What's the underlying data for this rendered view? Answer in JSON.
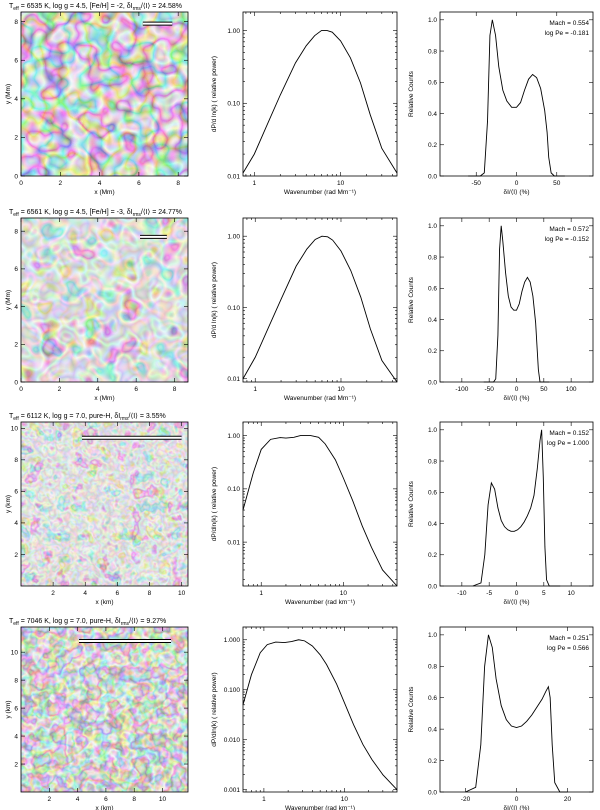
{
  "chart_data": [
    {
      "type": "heatmap",
      "title_main": "T",
      "title_sub": "eff",
      "title_rest": " = 6535 K, log g = 4.5, [Fe/H] = -2, δI",
      "title_sub2": "rms",
      "title_end": "/⟨I⟩ = 24.58%",
      "xlabel": "x (Mm)",
      "ylabel": "y (Mm)",
      "xlim": [
        0,
        8.5
      ],
      "ylim": [
        0,
        8.5
      ],
      "xticks": [
        0,
        2,
        4,
        6,
        8
      ],
      "yticks": [
        0,
        2,
        4,
        6,
        8
      ],
      "scale_bar": [
        6.2,
        7.7,
        7.9
      ]
    },
    {
      "type": "line",
      "log_x": true,
      "log_y": true,
      "xlabel": "Wavenumber (rad Mm⁻¹)",
      "ylabel": "dP/d ln(k) ( relative power)",
      "xlim": [
        0.74,
        45
      ],
      "ylim": [
        0.01,
        1.8
      ],
      "xticks": [
        1,
        10
      ],
      "xtick_labels": [
        "1",
        "10"
      ],
      "yticks": [
        0.01,
        0.1,
        1
      ],
      "ytick_labels": [
        "0.01",
        "0.10",
        "1.00"
      ],
      "x": [
        0.74,
        1,
        1.5,
        2,
        3,
        4,
        5,
        6,
        7,
        8,
        10,
        13,
        17,
        22,
        30,
        45
      ],
      "y": [
        0.011,
        0.02,
        0.06,
        0.13,
        0.36,
        0.62,
        0.85,
        1.0,
        1.0,
        0.95,
        0.72,
        0.42,
        0.19,
        0.07,
        0.024,
        0.011
      ]
    },
    {
      "type": "line",
      "xlabel": "δI/⟨I⟩ (%)",
      "ylabel": "Relative Counts",
      "xlim": [
        -95,
        95
      ],
      "ylim": [
        0,
        1.05
      ],
      "xticks": [
        -50,
        0,
        50
      ],
      "yticks": [
        0,
        0.2,
        0.4,
        0.6,
        0.8,
        1.0
      ],
      "ytick_labels": [
        "0.0",
        "0.2",
        "0.4",
        "0.6",
        "0.8",
        "1.0"
      ],
      "x": [
        -60,
        -45,
        -40,
        -36,
        -33,
        -30,
        -26,
        -22,
        -17,
        -12,
        -6,
        0,
        5,
        10,
        15,
        20,
        25,
        30,
        35,
        38,
        40,
        43,
        47,
        52,
        60
      ],
      "y": [
        0,
        0,
        0.02,
        0.35,
        0.9,
        1.0,
        0.9,
        0.7,
        0.55,
        0.48,
        0.44,
        0.44,
        0.47,
        0.55,
        0.62,
        0.65,
        0.63,
        0.56,
        0.42,
        0.28,
        0.12,
        0.02,
        0,
        0,
        0
      ],
      "annotations": [
        "Mach = 0.554",
        "log Pe = -0.181"
      ]
    },
    {
      "type": "heatmap",
      "title_main": "T",
      "title_sub": "eff",
      "title_rest": " = 6561 K, log g = 4.5, [Fe/H] = -3, δI",
      "title_sub2": "rms",
      "title_end": "/⟨I⟩ = 24.77%",
      "xlabel": "x (Mm)",
      "ylabel": "y (Mm)",
      "xlim": [
        0,
        8.7
      ],
      "ylim": [
        0,
        8.7
      ],
      "xticks": [
        0,
        2,
        4,
        6,
        8
      ],
      "yticks": [
        0,
        2,
        4,
        6,
        8
      ],
      "scale_bar": [
        6.2,
        7.6,
        7.7
      ]
    },
    {
      "type": "line",
      "log_x": true,
      "log_y": true,
      "xlabel": "Wavenumber (rad Mm⁻¹)",
      "ylabel": "dP/d ln(k) ( relative power)",
      "xlim": [
        0.72,
        45
      ],
      "ylim": [
        0.009,
        1.8
      ],
      "xticks": [
        1,
        10
      ],
      "xtick_labels": [
        "1",
        "10"
      ],
      "yticks": [
        0.01,
        0.1,
        1
      ],
      "ytick_labels": [
        "0.01",
        "0.10",
        "1.00"
      ],
      "x": [
        0.72,
        1,
        1.5,
        2,
        3,
        4,
        5,
        6,
        7,
        8,
        10,
        13,
        17,
        22,
        30,
        45
      ],
      "y": [
        0.01,
        0.02,
        0.06,
        0.13,
        0.38,
        0.66,
        0.9,
        1.0,
        0.98,
        0.88,
        0.62,
        0.33,
        0.14,
        0.05,
        0.018,
        0.009
      ]
    },
    {
      "type": "line",
      "xlabel": "δI/⟨I⟩ (%)",
      "ylabel": "Relative Counts",
      "xlim": [
        -140,
        140
      ],
      "ylim": [
        0,
        1.05
      ],
      "xticks": [
        -100,
        -50,
        0,
        50,
        100
      ],
      "yticks": [
        0,
        0.2,
        0.4,
        0.6,
        0.8,
        1.0
      ],
      "ytick_labels": [
        "0.0",
        "0.2",
        "0.4",
        "0.6",
        "0.8",
        "1.0"
      ],
      "x": [
        -60,
        -42,
        -38,
        -34,
        -31,
        -28,
        -25,
        -20,
        -15,
        -10,
        -5,
        0,
        5,
        10,
        15,
        20,
        25,
        30,
        35,
        38,
        40,
        43,
        50,
        60
      ],
      "y": [
        0,
        0,
        0.02,
        0.3,
        0.85,
        1.0,
        0.9,
        0.7,
        0.55,
        0.48,
        0.46,
        0.46,
        0.5,
        0.58,
        0.64,
        0.67,
        0.64,
        0.55,
        0.38,
        0.2,
        0.08,
        0,
        0,
        0
      ],
      "annotations": [
        "Mach = 0.572",
        "log Pe = -0.152"
      ]
    },
    {
      "type": "heatmap",
      "title_main": "T",
      "title_sub": "eff",
      "title_rest": " = 6112 K, log g = 7.0, pure-H, δI",
      "title_sub2": "rms",
      "title_end": "/⟨I⟩ = 3.55%",
      "xlabel": "x (km)",
      "ylabel": "y (km)",
      "xlim": [
        0,
        10.4
      ],
      "ylim": [
        0,
        10.4
      ],
      "xticks": [
        2,
        4,
        6,
        8,
        10
      ],
      "yticks": [
        2,
        4,
        6,
        8,
        10
      ],
      "scale_bar": [
        3.8,
        10,
        9.4
      ]
    },
    {
      "type": "line",
      "log_x": true,
      "log_y": true,
      "xlabel": "Wavenumber (rad km⁻¹)",
      "ylabel": "dP/dln(k) ( relative power)",
      "xlim": [
        0.6,
        45
      ],
      "ylim": [
        0.0015,
        1.8
      ],
      "xticks": [
        1,
        10
      ],
      "xtick_labels": [
        "1",
        "10"
      ],
      "yticks": [
        0.01,
        0.1,
        1
      ],
      "ytick_labels": [
        "0.01",
        "0.10",
        "1.00"
      ],
      "x": [
        0.6,
        0.8,
        1,
        1.3,
        1.7,
        2,
        2.5,
        3,
        4,
        5,
        6,
        8,
        10,
        13,
        17,
        22,
        30,
        45
      ],
      "y": [
        0.04,
        0.2,
        0.55,
        0.85,
        0.92,
        0.9,
        0.93,
        1.0,
        1.0,
        0.93,
        0.7,
        0.35,
        0.16,
        0.06,
        0.02,
        0.008,
        0.003,
        0.0015
      ]
    },
    {
      "type": "line",
      "xlabel": "δI/⟨I⟩ (%)",
      "ylabel": "Relative Counts",
      "xlim": [
        -14,
        14
      ],
      "ylim": [
        0,
        1.05
      ],
      "xticks": [
        -10,
        -5,
        0,
        5,
        10
      ],
      "yticks": [
        0,
        0.2,
        0.4,
        0.6,
        0.8,
        1.0
      ],
      "ytick_labels": [
        "0.0",
        "0.2",
        "0.4",
        "0.6",
        "0.8",
        "1.0"
      ],
      "x": [
        -8,
        -6.5,
        -5.8,
        -5.2,
        -4.6,
        -4,
        -3.4,
        -2.8,
        -2.2,
        -1.6,
        -1,
        -0.4,
        0.2,
        0.8,
        1.4,
        2,
        2.6,
        3.2,
        3.8,
        4.3,
        4.6,
        4.9,
        5.2,
        5.5,
        6,
        8
      ],
      "y": [
        0,
        0.02,
        0.2,
        0.52,
        0.66,
        0.62,
        0.5,
        0.42,
        0.38,
        0.36,
        0.35,
        0.35,
        0.36,
        0.38,
        0.41,
        0.45,
        0.5,
        0.58,
        0.75,
        0.93,
        1.0,
        0.7,
        0.25,
        0.04,
        0,
        0
      ],
      "annotations": [
        "Mach = 0.152",
        "log Pe = 1.000"
      ]
    },
    {
      "type": "heatmap",
      "title_main": "T",
      "title_sub": "eff",
      "title_rest": " = 7046 K, log g = 7.0, pure-H, δI",
      "title_sub2": "rms",
      "title_end": "/⟨I⟩ = 9.27%",
      "xlabel": "x (km)",
      "ylabel": "y (km)",
      "xlim": [
        0,
        11.8
      ],
      "ylim": [
        0,
        11.8
      ],
      "xticks": [
        2,
        4,
        6,
        8,
        10
      ],
      "yticks": [
        2,
        4,
        6,
        8,
        10
      ],
      "scale_bar": [
        4.1,
        10.6,
        10.8
      ]
    },
    {
      "type": "line",
      "log_x": true,
      "log_y": true,
      "xlabel": "Wavenumber (rad km⁻¹)",
      "ylabel": "dP/dln(k) ( relative power)",
      "xlim": [
        0.55,
        45
      ],
      "ylim": [
        0.0009,
        1.8
      ],
      "xticks": [
        1,
        10
      ],
      "xtick_labels": [
        "1",
        "10"
      ],
      "yticks": [
        0.001,
        0.01,
        0.1,
        1
      ],
      "ytick_labels": [
        "0.001",
        "0.010",
        "0.100",
        "1.000"
      ],
      "x": [
        0.55,
        0.7,
        0.9,
        1.1,
        1.4,
        1.8,
        2.2,
        2.7,
        3.2,
        4,
        5,
        6,
        8,
        10,
        13,
        17,
        22,
        30,
        45
      ],
      "y": [
        0.05,
        0.2,
        0.55,
        0.8,
        0.9,
        0.88,
        0.92,
        1.0,
        0.95,
        0.75,
        0.5,
        0.32,
        0.13,
        0.055,
        0.02,
        0.008,
        0.004,
        0.002,
        0.001
      ]
    },
    {
      "type": "line",
      "xlabel": "δI/⟨I⟩ (%)",
      "ylabel": "Relative Counts",
      "xlim": [
        -30,
        30
      ],
      "ylim": [
        0,
        1.05
      ],
      "xticks": [
        -20,
        0,
        20
      ],
      "yticks": [
        0,
        0.2,
        0.4,
        0.6,
        0.8,
        1.0
      ],
      "ytick_labels": [
        "0.0",
        "0.2",
        "0.4",
        "0.6",
        "0.8",
        "1.0"
      ],
      "x": [
        -20,
        -16,
        -14,
        -12.5,
        -11,
        -9.5,
        -8,
        -6,
        -4,
        -2,
        0,
        2,
        4,
        6,
        8,
        10,
        11.5,
        12.5,
        13.2,
        14,
        15,
        17,
        20
      ],
      "y": [
        0,
        0.03,
        0.3,
        0.8,
        1.0,
        0.92,
        0.72,
        0.55,
        0.46,
        0.42,
        0.41,
        0.42,
        0.45,
        0.49,
        0.54,
        0.59,
        0.64,
        0.67,
        0.6,
        0.3,
        0.06,
        0,
        0
      ],
      "annotations": [
        "Mach = 0.251",
        "log Pe = 0.566"
      ]
    }
  ]
}
